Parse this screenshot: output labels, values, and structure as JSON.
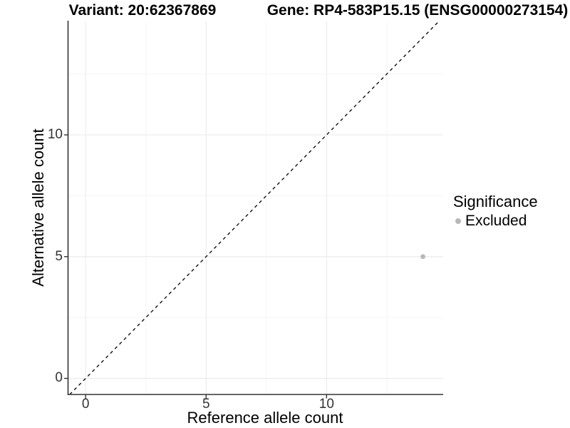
{
  "chart_data": {
    "type": "scatter",
    "titles": {
      "left": "Variant: 20:62367869",
      "right": "Gene: RP4-583P15.15 (ENSG00000273154)"
    },
    "xlabel": "Reference allele count",
    "ylabel": "Alternative allele count",
    "x_ticks": [
      0,
      5,
      10
    ],
    "y_ticks": [
      0,
      5,
      10
    ],
    "x_minor_ticks": [
      2.5,
      7.5,
      12.5
    ],
    "y_minor_ticks": [
      2.5,
      7.5,
      12.5
    ],
    "xlim": [
      -0.73,
      14.84
    ],
    "ylim": [
      -0.66,
      14.66
    ],
    "grid": {
      "visible": true,
      "major_color": "#ececec",
      "minor_color": "#f5f5f5"
    },
    "axis_color": "#333333",
    "tick_label_color": "#333333",
    "background": "#ffffff",
    "reference_line": {
      "type": "identity y=x",
      "style": "dashed",
      "color": "#000000"
    },
    "series": [
      {
        "name": "Excluded",
        "color": "#b8b8b8",
        "points": [
          {
            "x": 14,
            "y": 5
          }
        ]
      }
    ],
    "legend": {
      "title": "Significance",
      "position": "right",
      "entries": [
        {
          "label": "Excluded",
          "color": "#b8b8b8"
        }
      ]
    }
  }
}
